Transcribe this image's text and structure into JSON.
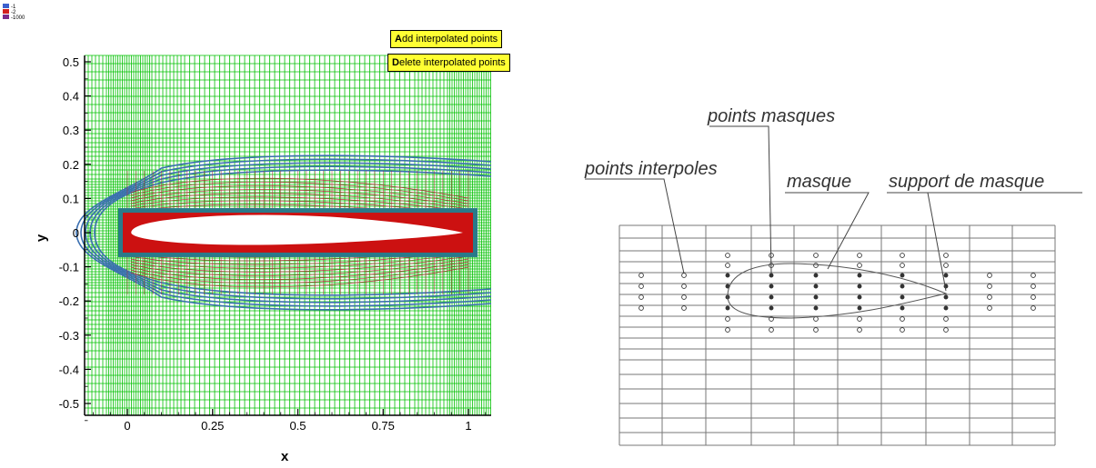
{
  "legend": {
    "entries": [
      "-1",
      "-2",
      "-1000"
    ],
    "colors": [
      "#3a5fcd",
      "#d22020",
      "#7a2a8a"
    ]
  },
  "buttons": {
    "add": {
      "hotkey": "A",
      "rest": "dd interpolated points"
    },
    "delete": {
      "hotkey": "D",
      "rest": "elete interpolated points"
    }
  },
  "plot": {
    "xlabel": "x",
    "ylabel": "y",
    "xlim": [
      -0.13,
      1.07
    ],
    "ylim": [
      -0.55,
      0.53
    ],
    "xticks": [
      {
        "v": 0,
        "t": "0"
      },
      {
        "v": 0.25,
        "t": "0.25"
      },
      {
        "v": 0.5,
        "t": "0.5"
      },
      {
        "v": 0.75,
        "t": "0.75"
      },
      {
        "v": 1,
        "t": "1"
      }
    ],
    "yticks": [
      {
        "v": 0.5,
        "t": "0.5"
      },
      {
        "v": 0.4,
        "t": "0.4"
      },
      {
        "v": 0.3,
        "t": "0.3"
      },
      {
        "v": 0.2,
        "t": "0.2"
      },
      {
        "v": 0.1,
        "t": "0.1"
      },
      {
        "v": 0,
        "t": "0"
      },
      {
        "v": -0.1,
        "t": "-0.1"
      },
      {
        "v": -0.2,
        "t": "-0.2"
      },
      {
        "v": -0.3,
        "t": "-0.3"
      },
      {
        "v": -0.4,
        "t": "-0.4"
      },
      {
        "v": -0.5,
        "t": "-0.5"
      }
    ],
    "mask_box": {
      "x": [
        -0.02,
        1.02
      ],
      "y": [
        -0.065,
        0.065
      ]
    },
    "colors": {
      "grid": "#00c000",
      "blue": "#3a6fb0",
      "red": "#cc1111",
      "teal": "#2a7a8a"
    }
  },
  "schematic": {
    "labels": {
      "points_masques": "points masques",
      "points_interpoles": "points interpoles",
      "masque": "masque",
      "support_de_masque": "support de masque"
    }
  }
}
